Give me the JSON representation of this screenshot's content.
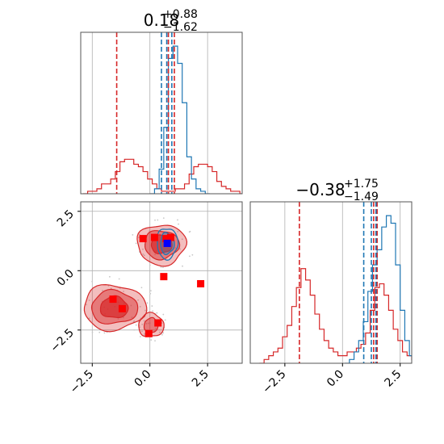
{
  "colors": {
    "red": "#d62728",
    "blue": "#1f77b4",
    "axis": "#555555",
    "grid": "#b0b0b0"
  },
  "chart_data": [
    {
      "type": "histogram",
      "panel": "top-left marginal",
      "title": {
        "value": "0.18",
        "plus": "+0.88",
        "minus": "−1.62"
      },
      "xlim": [
        -3.0,
        4.0
      ],
      "grid": true,
      "x_ticks": [
        -2.5,
        0.0,
        2.5
      ],
      "bin_width": 0.2,
      "red_series": {
        "bins_start": -2.9,
        "counts": [
          0,
          1,
          1,
          2,
          4,
          4,
          6,
          9,
          13,
          14,
          14,
          12,
          11,
          9,
          6,
          4,
          2,
          1,
          1,
          1,
          2,
          2,
          4,
          8,
          11,
          12,
          12,
          11,
          9,
          5,
          3,
          2,
          1,
          1,
          0
        ]
      },
      "blue_series": {
        "bins_start": 0.0,
        "counts": [
          0,
          2,
          10,
          27,
          55,
          60,
          53,
          37,
          15,
          6,
          2,
          1,
          0
        ]
      },
      "red_quantiles": [
        -1.44,
        0.8,
        1.06
      ],
      "blue_quantiles": [
        0.5,
        0.73,
        0.95
      ]
    },
    {
      "type": "histogram",
      "panel": "bottom-right marginal",
      "title": {
        "value": "−0.38",
        "plus": "+1.75",
        "minus": "−1.49"
      },
      "xlim": [
        -4.0,
        3.0
      ],
      "grid": true,
      "x_ticks": [
        -2.5,
        0.0,
        2.5
      ],
      "x_tick_labels": [
        "−2.5",
        "0.0",
        "2.5"
      ],
      "bin_width": 0.2,
      "red_series": {
        "bins_start": -3.6,
        "counts": [
          0,
          1,
          2,
          3,
          4,
          7,
          10,
          15,
          20,
          25,
          22,
          18,
          13,
          9,
          6,
          4,
          3,
          2,
          2,
          3,
          3,
          4,
          5,
          8,
          14,
          20,
          21,
          18,
          14,
          9,
          6,
          3,
          2,
          1,
          0
        ]
      },
      "blue_series": {
        "bins_start": 0.1,
        "counts": [
          0,
          1,
          3,
          6,
          11,
          19,
          26,
          30,
          36,
          39,
          37,
          26,
          14,
          6,
          2,
          1,
          0
        ]
      },
      "red_quantiles": [
        -1.87,
        1.35,
        1.5
      ],
      "blue_quantiles": [
        0.92,
        1.25,
        1.45
      ]
    },
    {
      "type": "scatter",
      "panel": "bottom-left 2D density",
      "xlim": [
        -3.0,
        4.0
      ],
      "ylim": [
        -3.9,
        2.9
      ],
      "grid": true,
      "x_ticks": [
        -2.5,
        0.0,
        2.5
      ],
      "x_tick_labels": [
        "−2.5",
        "0.0",
        "2.5"
      ],
      "y_ticks": [
        -2.5,
        0.0,
        2.5
      ],
      "y_tick_labels": [
        "−2.5",
        "0.0",
        "2.5"
      ],
      "red_blobs": [
        {
          "name": "upper mode",
          "cx": 0.5,
          "cy": 1.1,
          "rx": [
            1.05,
            0.75,
            0.45
          ],
          "ry": [
            0.85,
            0.6,
            0.38
          ]
        },
        {
          "name": "lower mode",
          "cx": -1.55,
          "cy": -1.55,
          "rx": [
            1.35,
            1.0,
            0.6
          ],
          "ry": [
            0.95,
            0.7,
            0.45
          ]
        },
        {
          "name": "lower tail",
          "cx": 0.05,
          "cy": -2.3,
          "rx": [
            0.55,
            0.3,
            0.0
          ],
          "ry": [
            0.5,
            0.3,
            0.0
          ]
        }
      ],
      "blue_contour": {
        "cx": 0.75,
        "cy": 1.15,
        "rx": [
          0.45,
          0.3
        ],
        "ry": [
          0.65,
          0.45
        ]
      },
      "red_markers": [
        {
          "x": 0.2,
          "y": 1.4
        },
        {
          "x": 0.7,
          "y": 1.35
        },
        {
          "x": 0.9,
          "y": 1.4
        },
        {
          "x": -0.3,
          "y": 1.35
        },
        {
          "x": 0.6,
          "y": -0.25
        },
        {
          "x": 2.2,
          "y": -0.55
        },
        {
          "x": -1.6,
          "y": -1.2
        },
        {
          "x": -1.2,
          "y": -1.6
        },
        {
          "x": 0.35,
          "y": -2.2
        },
        {
          "x": -0.05,
          "y": -2.65
        }
      ],
      "blue_markers": [
        {
          "x": 0.75,
          "y": 1.15
        }
      ]
    }
  ]
}
